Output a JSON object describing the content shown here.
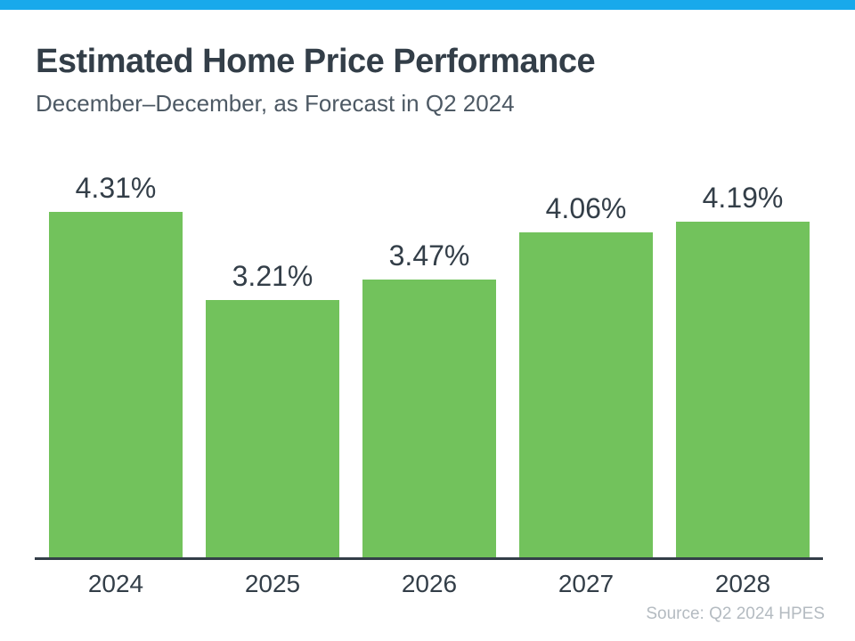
{
  "page": {
    "background_color": "#ffffff",
    "accent_bar_color": "#18a9eb"
  },
  "chart_data": {
    "type": "bar",
    "title": "Estimated Home Price Performance",
    "subtitle": "December–December, as Forecast in Q2 2024",
    "categories": [
      "2024",
      "2025",
      "2026",
      "2027",
      "2028"
    ],
    "values": [
      4.31,
      3.21,
      3.47,
      4.06,
      4.19
    ],
    "value_labels": [
      "4.31%",
      "3.21%",
      "3.47%",
      "4.06%",
      "4.19%"
    ],
    "xlabel": "",
    "ylabel": "",
    "ylim": [
      0,
      4.31
    ],
    "grid": false,
    "legend": false,
    "y_axis_shown": false,
    "bar_color": "#72c25c",
    "label_color": "#333e48",
    "axis_line_color": "#333e48",
    "source": "Source: Q2 2024 HPES"
  }
}
